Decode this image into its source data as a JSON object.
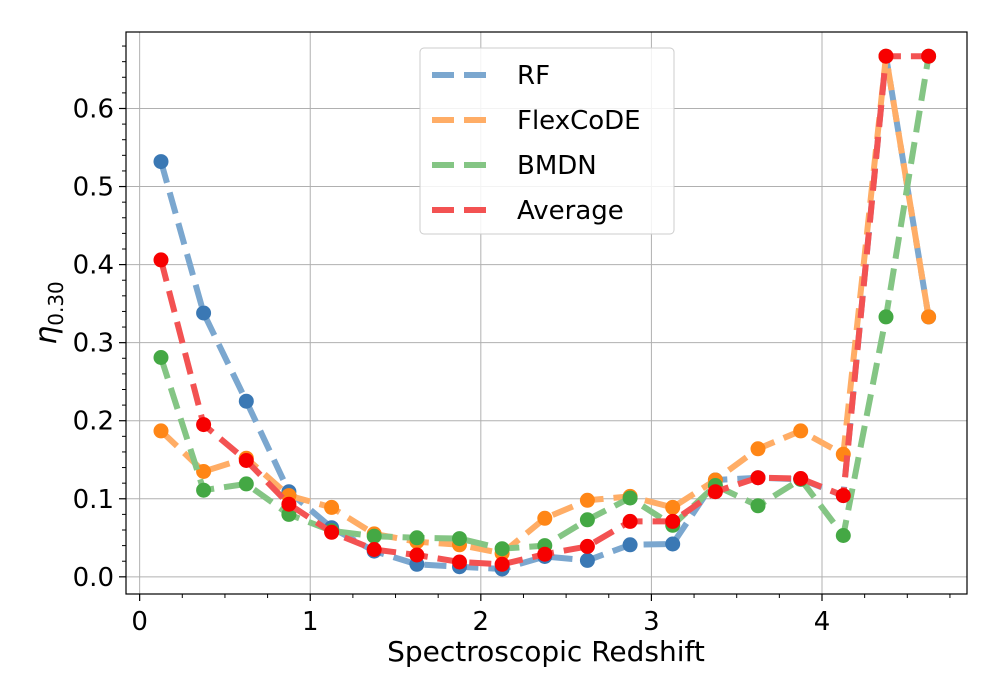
{
  "chart_data": {
    "type": "line",
    "title": "",
    "xlabel": "Spectroscopic Redshift",
    "ylabel_main": "η",
    "ylabel_sub": "0.30",
    "xlim": [
      -0.08,
      4.85
    ],
    "ylim": [
      -0.022,
      0.698
    ],
    "xticks": [
      0,
      1,
      2,
      3,
      4
    ],
    "xtick_labels": [
      "0",
      "1",
      "2",
      "3",
      "4"
    ],
    "yticks": [
      0.0,
      0.1,
      0.2,
      0.3,
      0.4,
      0.5,
      0.6
    ],
    "ytick_labels": [
      "0.0",
      "0.1",
      "0.2",
      "0.3",
      "0.4",
      "0.5",
      "0.6"
    ],
    "grid": true,
    "legend_position": "upper-center",
    "x": [
      0.125,
      0.375,
      0.625,
      0.875,
      1.125,
      1.375,
      1.625,
      1.875,
      2.125,
      2.375,
      2.625,
      2.875,
      3.125,
      3.375,
      3.625,
      3.875,
      4.125,
      4.375,
      4.625
    ],
    "series": [
      {
        "name": "RF",
        "line_color": "#7ba7cf",
        "marker_color": "#3a78b4",
        "values": [
          0.532,
          0.338,
          0.225,
          0.109,
          0.063,
          0.033,
          0.016,
          0.013,
          0.01,
          0.026,
          0.021,
          0.041,
          0.042,
          0.124,
          0.127,
          0.125,
          0.104,
          0.667,
          0.333
        ]
      },
      {
        "name": "FlexCoDE",
        "line_color": "#ffad66",
        "marker_color": "#ff8616",
        "values": [
          0.187,
          0.135,
          0.152,
          0.104,
          0.089,
          0.055,
          0.045,
          0.041,
          0.03,
          0.075,
          0.098,
          0.103,
          0.089,
          0.124,
          0.164,
          0.187,
          0.157,
          0.667,
          0.333
        ]
      },
      {
        "name": "BMDN",
        "line_color": "#84c584",
        "marker_color": "#44a844",
        "values": [
          0.281,
          0.111,
          0.119,
          0.08,
          0.059,
          0.052,
          0.05,
          0.049,
          0.036,
          0.04,
          0.073,
          0.101,
          0.066,
          0.117,
          0.091,
          0.125,
          0.053,
          0.333,
          0.667
        ]
      },
      {
        "name": "Average",
        "line_color": "#f35252",
        "marker_color": "#f70000",
        "values": [
          0.406,
          0.195,
          0.149,
          0.093,
          0.057,
          0.035,
          0.028,
          0.019,
          0.016,
          0.029,
          0.039,
          0.071,
          0.071,
          0.109,
          0.127,
          0.126,
          0.104,
          0.667,
          0.667
        ]
      }
    ]
  }
}
